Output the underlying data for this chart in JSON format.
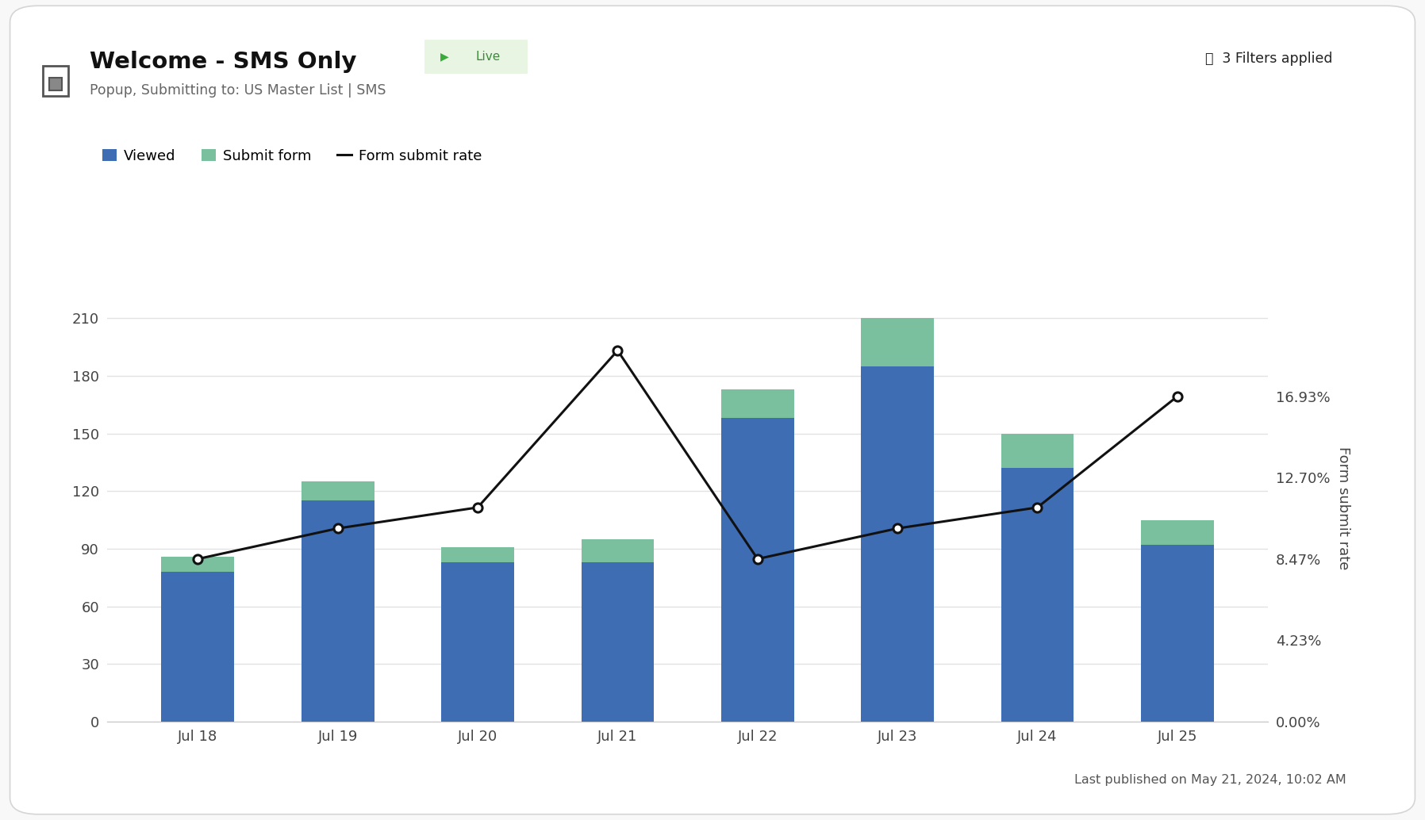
{
  "title": "Welcome - SMS Only",
  "subtitle": "Popup, Submitting to: US Master List | SMS",
  "live_label": "► Live",
  "filters_label": "⯁  3 Filters applied",
  "footer": "Last published on May 21, 2024, 10:02 AM",
  "dates": [
    "Jul 18",
    "Jul 19",
    "Jul 20",
    "Jul 21",
    "Jul 22",
    "Jul 23",
    "Jul 24",
    "Jul 25"
  ],
  "viewed": [
    78,
    115,
    83,
    83,
    158,
    185,
    132,
    92
  ],
  "submit_form": [
    8,
    10,
    8,
    12,
    15,
    25,
    18,
    13
  ],
  "submit_rate": [
    0.0847,
    0.1006,
    0.1115,
    0.1932,
    0.0847,
    0.1006,
    0.1115,
    0.1693
  ],
  "right_yticks": [
    0.0,
    0.0423,
    0.0847,
    0.127,
    0.1693
  ],
  "right_yticklabels": [
    "0.00%",
    "4.23%",
    "8.47%",
    "12.70%",
    "16.93%"
  ],
  "left_yticks": [
    0,
    30,
    60,
    90,
    120,
    150,
    180,
    210
  ],
  "viewed_color": "#3e6db4",
  "submit_color": "#7abf9e",
  "line_color": "#111111",
  "background_color": "#f8f8f8",
  "card_color": "#ffffff",
  "grid_color": "#e2e2e2",
  "legend_viewed": "Viewed",
  "legend_submit": "Submit form",
  "legend_rate": "Form submit rate",
  "ylabel_right": "Form submit rate",
  "live_bg": "#e8f5e3",
  "live_border": "#5ab55a",
  "live_text": "#3a8a3a",
  "live_dot": "#3aaa3a"
}
